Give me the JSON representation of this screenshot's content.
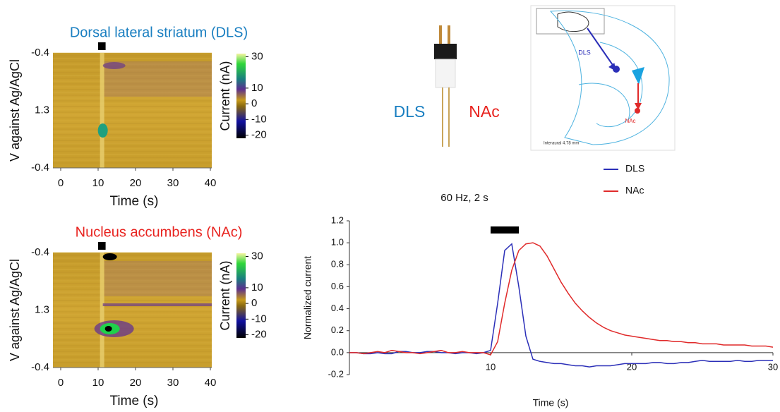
{
  "chart_data": [
    {
      "type": "heatmap",
      "title": "Dorsal lateral striatum (DLS)",
      "title_color": "#1a7fc1",
      "xlabel": "Time (s)",
      "ylabel": "V against Ag/AgCl",
      "xlim": [
        0,
        40
      ],
      "xticks": [
        0,
        10,
        20,
        30,
        40
      ],
      "ytick_labels": [
        "-0.4",
        "1.3",
        "-0.4"
      ],
      "stimulus": [
        10,
        12
      ],
      "colorbar_label": "Current (nA)",
      "clim": [
        -22,
        32
      ],
      "cticks": [
        30,
        10,
        0,
        -10,
        -20
      ]
    },
    {
      "type": "heatmap",
      "title": "Nucleus accumbens (NAc)",
      "title_color": "#e8231f",
      "xlabel": "Time (s)",
      "ylabel": "V against Ag/AgCl",
      "xlim": [
        0,
        40
      ],
      "xticks": [
        0,
        10,
        20,
        30,
        40
      ],
      "ytick_labels": [
        "-0.4",
        "1.3",
        "-0.4"
      ],
      "stimulus": [
        10,
        12
      ],
      "colorbar_label": "Current (nA)",
      "clim": [
        -22,
        32
      ],
      "cticks": [
        30,
        10,
        0,
        -10,
        -20
      ]
    },
    {
      "type": "line",
      "title": "60 Hz, 2 s",
      "xlabel": "Time (s)",
      "ylabel": "Normalized current",
      "xlim": [
        0,
        30
      ],
      "xticks": [
        10,
        20,
        30
      ],
      "ylim": [
        -0.2,
        1.2
      ],
      "yticks": [
        {
          "value": -0.2,
          "label": "-0.2"
        },
        {
          "value": 0,
          "label": "0.0"
        },
        {
          "value": 0.2,
          "label": "0.2"
        },
        {
          "value": 0.4,
          "label": "0.4"
        },
        {
          "value": 0.6,
          "label": "0.6"
        },
        {
          "value": 0.8,
          "label": "0.8"
        },
        {
          "value": 1,
          "label": "1.0"
        },
        {
          "value": 1.2,
          "label": "1.2"
        }
      ],
      "stimulus": [
        10,
        12
      ],
      "legend": "top-right",
      "x": [
        0,
        0.5,
        1,
        1.5,
        2,
        2.5,
        3,
        3.5,
        4,
        4.5,
        5,
        5.5,
        6,
        6.5,
        7,
        7.5,
        8,
        8.5,
        9,
        9.5,
        10,
        10.5,
        11,
        11.5,
        12,
        12.5,
        13,
        13.5,
        14,
        14.5,
        15,
        15.5,
        16,
        16.5,
        17,
        17.5,
        18,
        18.5,
        19,
        19.5,
        20,
        20.5,
        21,
        21.5,
        22,
        22.5,
        23,
        23.5,
        24,
        24.5,
        25,
        25.5,
        26,
        26.5,
        27,
        27.5,
        28,
        28.5,
        29,
        29.5,
        30
      ],
      "series": [
        {
          "name": "DLS",
          "color": "#2b2fb8",
          "values": [
            0,
            0,
            -0.01,
            -0.01,
            0,
            -0.01,
            -0.01,
            0.01,
            0.01,
            0,
            0,
            0.01,
            0.01,
            0,
            0,
            -0.01,
            0,
            0,
            -0.01,
            0,
            0.02,
            0.45,
            0.93,
            0.99,
            0.6,
            0.15,
            -0.06,
            -0.08,
            -0.09,
            -0.1,
            -0.1,
            -0.11,
            -0.12,
            -0.12,
            -0.13,
            -0.12,
            -0.12,
            -0.12,
            -0.11,
            -0.1,
            -0.1,
            -0.1,
            -0.1,
            -0.09,
            -0.09,
            -0.1,
            -0.1,
            -0.09,
            -0.09,
            -0.08,
            -0.07,
            -0.08,
            -0.08,
            -0.08,
            -0.08,
            -0.07,
            -0.08,
            -0.08,
            -0.07,
            -0.07,
            -0.07
          ]
        },
        {
          "name": "NAc",
          "color": "#e02a2a",
          "values": [
            0,
            0,
            -0.01,
            0,
            0.01,
            0,
            0.02,
            0.01,
            0,
            0,
            -0.01,
            0,
            0.01,
            0.02,
            0,
            0,
            0.01,
            0,
            0,
            0,
            -0.02,
            0.1,
            0.45,
            0.75,
            0.93,
            0.99,
            1.0,
            0.97,
            0.88,
            0.76,
            0.64,
            0.54,
            0.45,
            0.38,
            0.32,
            0.27,
            0.23,
            0.2,
            0.18,
            0.16,
            0.15,
            0.14,
            0.13,
            0.12,
            0.11,
            0.11,
            0.1,
            0.1,
            0.09,
            0.09,
            0.08,
            0.08,
            0.08,
            0.07,
            0.07,
            0.07,
            0.07,
            0.06,
            0.06,
            0.06,
            0.05
          ]
        }
      ]
    }
  ],
  "electrode": {
    "left_label": "DLS",
    "right_label": "NAc"
  },
  "atlas": {
    "dls_label": "DLS",
    "nac_label": "NAc",
    "caption": "Interaural 4.78 mm"
  }
}
